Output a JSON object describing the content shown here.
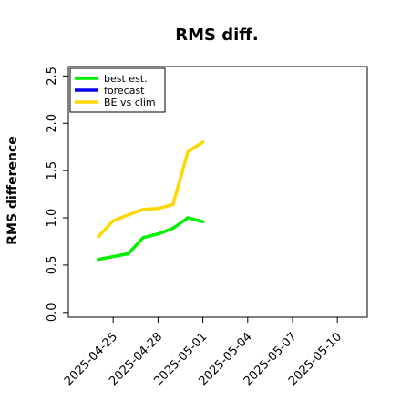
{
  "chart_data": {
    "type": "line",
    "title": "RMS diff.",
    "xlabel": "",
    "ylabel": "RMS difference",
    "ylim": [
      -0.05,
      2.6
    ],
    "xlim": [
      "2025-04-22",
      "2025-05-12"
    ],
    "yticks": [
      "0.0",
      "0.5",
      "1.0",
      "1.5",
      "2.0",
      "2.5"
    ],
    "xticks": [
      {
        "label": "2025-04-25",
        "date": "2025-04-25",
        "color": "#000000"
      },
      {
        "label": "2025-04-28",
        "date": "2025-04-28",
        "color": "#000000"
      },
      {
        "label": "2025-05-01",
        "date": "2025-05-01",
        "color": "#228B22"
      },
      {
        "label": "2025-05-04",
        "date": "2025-05-04",
        "color": "#000000"
      },
      {
        "label": "2025-05-07",
        "date": "2025-05-07",
        "color": "#000000"
      },
      {
        "label": "2025-05-10",
        "date": "2025-05-10",
        "color": "#000000"
      }
    ],
    "legend_position": "top-left",
    "series": [
      {
        "name": "best est.",
        "color": "#00ee00",
        "points": [
          {
            "x": "2025-04-24",
            "y": 0.56
          },
          {
            "x": "2025-04-26",
            "y": 0.62
          },
          {
            "x": "2025-04-27",
            "y": 0.79
          },
          {
            "x": "2025-04-28",
            "y": 0.83
          },
          {
            "x": "2025-04-29",
            "y": 0.89
          },
          {
            "x": "2025-04-30",
            "y": 1.0
          },
          {
            "x": "2025-05-01",
            "y": 0.96
          }
        ]
      },
      {
        "name": "forecast",
        "color": "#0000ee",
        "points": []
      },
      {
        "name": "BE vs clim",
        "color": "#ffd700",
        "points": [
          {
            "x": "2025-04-24",
            "y": 0.8
          },
          {
            "x": "2025-04-25",
            "y": 0.97
          },
          {
            "x": "2025-04-26",
            "y": 1.03
          },
          {
            "x": "2025-04-27",
            "y": 1.09
          },
          {
            "x": "2025-04-28",
            "y": 1.1
          },
          {
            "x": "2025-04-29",
            "y": 1.14
          },
          {
            "x": "2025-04-30",
            "y": 1.7
          },
          {
            "x": "2025-05-01",
            "y": 1.8
          }
        ]
      }
    ]
  }
}
